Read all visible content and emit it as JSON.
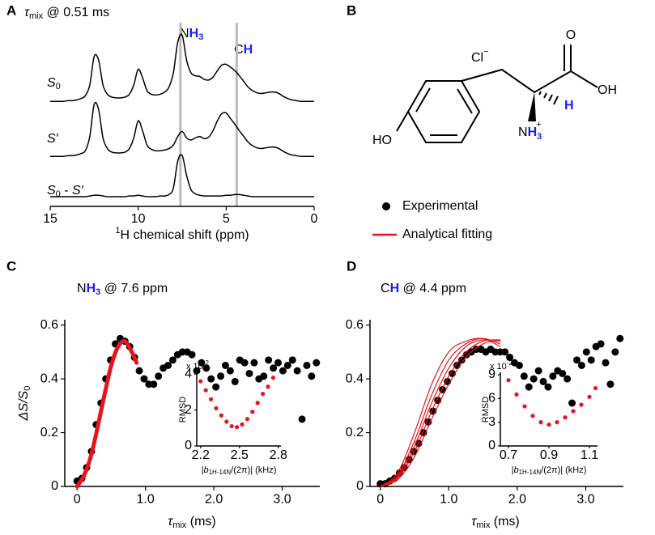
{
  "panel_labels": [
    "A",
    "B",
    "C",
    "D"
  ],
  "chart_data": [
    {
      "type": "spectrum",
      "title": [
        "τ",
        "mix",
        " @ 0.51 ms"
      ],
      "xlabel": [
        "1",
        "H chemical shift (ppm)"
      ],
      "xlim": [
        15,
        0
      ],
      "xticks": [
        15,
        10,
        5,
        0
      ],
      "x": [
        15,
        14.75,
        14.5,
        14.25,
        14,
        13.75,
        13.5,
        13.25,
        13,
        12.75,
        12.5,
        12.25,
        12,
        11.75,
        11.5,
        11.25,
        11,
        10.75,
        10.5,
        10.25,
        10,
        9.75,
        9.5,
        9.25,
        9,
        8.75,
        8.5,
        8.25,
        8,
        7.75,
        7.5,
        7.25,
        7,
        6.75,
        6.5,
        6.25,
        6,
        5.75,
        5.5,
        5.25,
        5,
        4.75,
        4.5,
        4.25,
        4,
        3.75,
        3.5,
        3.25,
        3,
        2.75,
        2.5,
        2.25,
        2,
        1.75,
        1.5,
        1.25,
        1,
        0.75,
        0.5,
        0.25,
        0
      ],
      "series": [
        {
          "name": [
            "S",
            "0"
          ],
          "color": "#000000",
          "values": [
            0.02,
            0.02,
            0.02,
            0.02,
            0.03,
            0.03,
            0.04,
            0.06,
            0.1,
            0.25,
            0.65,
            0.6,
            0.25,
            0.12,
            0.08,
            0.07,
            0.07,
            0.08,
            0.12,
            0.25,
            0.47,
            0.35,
            0.17,
            0.12,
            0.11,
            0.12,
            0.15,
            0.22,
            0.42,
            0.85,
            0.95,
            0.6,
            0.42,
            0.38,
            0.37,
            0.33,
            0.32,
            0.36,
            0.45,
            0.53,
            0.54,
            0.5,
            0.45,
            0.38,
            0.3,
            0.22,
            0.17,
            0.14,
            0.13,
            0.14,
            0.15,
            0.15,
            0.13,
            0.09,
            0.06,
            0.04,
            0.03,
            0.02,
            0.02,
            0.02,
            0.02
          ]
        },
        {
          "name": [
            "S",
            "′"
          ],
          "color": "#000000",
          "values": [
            0.02,
            0.02,
            0.02,
            0.02,
            0.03,
            0.03,
            0.04,
            0.06,
            0.1,
            0.3,
            0.75,
            0.68,
            0.28,
            0.13,
            0.08,
            0.07,
            0.07,
            0.08,
            0.13,
            0.28,
            0.52,
            0.38,
            0.18,
            0.12,
            0.1,
            0.1,
            0.11,
            0.13,
            0.18,
            0.3,
            0.37,
            0.28,
            0.25,
            0.28,
            0.3,
            0.27,
            0.29,
            0.38,
            0.52,
            0.62,
            0.63,
            0.55,
            0.47,
            0.38,
            0.3,
            0.22,
            0.17,
            0.14,
            0.13,
            0.14,
            0.15,
            0.15,
            0.13,
            0.09,
            0.06,
            0.04,
            0.03,
            0.02,
            0.02,
            0.02,
            0.02
          ]
        },
        {
          "name": [
            "S",
            "0",
            " - ",
            "S",
            "′"
          ],
          "color": "#000000",
          "values": [
            0,
            0,
            0,
            0,
            0,
            0,
            0,
            0,
            0,
            0.01,
            0.02,
            0.02,
            0.01,
            0,
            0,
            0,
            0,
            0,
            0.01,
            0.01,
            0.02,
            0.01,
            0,
            0,
            0,
            0.01,
            0.01,
            0.03,
            0.12,
            0.5,
            0.58,
            0.3,
            0.1,
            0.04,
            0.02,
            0.01,
            0.01,
            0.01,
            0.01,
            0.01,
            0.02,
            0.02,
            0.03,
            0.03,
            0.02,
            0.01,
            0,
            0,
            0,
            0,
            0,
            0,
            0,
            0,
            0,
            0,
            0,
            0,
            0,
            0,
            0
          ]
        }
      ],
      "guide_lines": [
        7.6,
        4.4
      ],
      "guide_color": "#bbbbbb",
      "peak_labels": [
        [
          "N",
          "H",
          "3"
        ],
        [
          "C",
          "H"
        ]
      ]
    },
    {
      "type": "scatter",
      "title": [
        "N",
        "H",
        "3",
        " @ 7.6 ppm"
      ],
      "xlabel": [
        "τ",
        "mix",
        " (ms)"
      ],
      "ylabel": [
        "ΔS/S",
        "0"
      ],
      "xlim": [
        -0.18,
        3.55
      ],
      "ylim": [
        0,
        0.62
      ],
      "xticks": [
        0,
        {
          "value": 1,
          "label": "1.0"
        },
        {
          "value": 2,
          "label": "2.0"
        },
        {
          "value": 3,
          "label": "3.0"
        }
      ],
      "yticks": [
        0,
        0.2,
        0.4,
        0.6
      ],
      "color": "#000000",
      "x": [
        0,
        0.07,
        0.14,
        0.21,
        0.28,
        0.35,
        0.42,
        0.49,
        0.56,
        0.63,
        0.7,
        0.77,
        0.84,
        0.91,
        0.98,
        1.05,
        1.12,
        1.19,
        1.26,
        1.33,
        1.4,
        1.47,
        1.54,
        1.61,
        1.68,
        1.75,
        1.82,
        1.89,
        1.96,
        2.03,
        2.1,
        2.17,
        2.24,
        2.31,
        2.38,
        2.45,
        2.52,
        2.59,
        2.66,
        2.73,
        2.8,
        2.87,
        2.94,
        3.01,
        3.08,
        3.15,
        3.22,
        3.29,
        3.36,
        3.43,
        3.5
      ],
      "values": [
        0.02,
        0.03,
        0.07,
        0.13,
        0.23,
        0.31,
        0.4,
        0.47,
        0.53,
        0.55,
        0.54,
        0.52,
        0.48,
        0.43,
        0.4,
        0.38,
        0.38,
        0.41,
        0.44,
        0.45,
        0.47,
        0.49,
        0.5,
        0.5,
        0.49,
        0.43,
        0.46,
        0.44,
        0.4,
        0.37,
        0.41,
        0.45,
        0.43,
        0.39,
        0.47,
        0.46,
        0.42,
        0.46,
        0.4,
        0.41,
        0.47,
        0.44,
        0.46,
        0.43,
        0.45,
        0.47,
        0.43,
        0.25,
        0.45,
        0.41,
        0.46
      ],
      "fit": {
        "color": "#e8141c",
        "x": [
          0,
          0.1,
          0.2,
          0.3,
          0.4,
          0.5,
          0.6,
          0.7,
          0.8,
          0.87
        ],
        "series": [
          {
            "values": [
              0,
              0.04,
              0.11,
              0.22,
              0.34,
              0.45,
              0.52,
              0.54,
              0.5,
              0.46
            ]
          }
        ]
      },
      "inset": {
        "ylabel": "RMSD",
        "scale": [
          "x 10",
          "-2"
        ],
        "xlabel": [
          "|",
          "b",
          "1H-14N",
          "/(2π)| (kHz)"
        ],
        "xlim": [
          2.17,
          2.82
        ],
        "ylim": [
          0,
          4.1
        ],
        "xticks": [
          2.2,
          2.5,
          2.8
        ],
        "yticks": [
          0,
          2,
          4
        ],
        "color": "#e8141c",
        "x": [
          2.2,
          2.24,
          2.28,
          2.32,
          2.36,
          2.4,
          2.44,
          2.48,
          2.52,
          2.56,
          2.6,
          2.64,
          2.68,
          2.72,
          2.76
        ],
        "values": [
          3.6,
          3.1,
          2.6,
          2.1,
          1.7,
          1.35,
          1.1,
          1.05,
          1.2,
          1.5,
          1.9,
          2.4,
          2.9,
          3.3,
          3.8
        ]
      }
    },
    {
      "type": "scatter",
      "title": [
        "C",
        "H",
        " @ 4.4 ppm"
      ],
      "xlabel": [
        "τ",
        "mix",
        " (ms)"
      ],
      "xlim": [
        -0.15,
        3.55
      ],
      "ylim": [
        0,
        0.62
      ],
      "xticks": [
        0,
        {
          "value": 1,
          "label": "1.0"
        },
        {
          "value": 2,
          "label": "2.0"
        },
        {
          "value": 3,
          "label": "3.0"
        }
      ],
      "yticks": [
        0,
        0.2,
        0.4,
        0.6
      ],
      "color": "#000000",
      "x": [
        0,
        0.07,
        0.14,
        0.21,
        0.28,
        0.35,
        0.42,
        0.49,
        0.56,
        0.63,
        0.7,
        0.77,
        0.84,
        0.91,
        0.98,
        1.05,
        1.12,
        1.19,
        1.26,
        1.33,
        1.4,
        1.47,
        1.54,
        1.61,
        1.68,
        1.75,
        1.82,
        1.89,
        1.96,
        2.03,
        2.1,
        2.17,
        2.24,
        2.31,
        2.38,
        2.45,
        2.52,
        2.59,
        2.66,
        2.73,
        2.8,
        2.87,
        2.94,
        3.01,
        3.08,
        3.15,
        3.22,
        3.29,
        3.36,
        3.43,
        3.5
      ],
      "values": [
        0.01,
        0.01,
        0.02,
        0.03,
        0.05,
        0.07,
        0.1,
        0.13,
        0.16,
        0.2,
        0.24,
        0.28,
        0.32,
        0.36,
        0.39,
        0.42,
        0.45,
        0.47,
        0.49,
        0.5,
        0.51,
        0.51,
        0.5,
        0.51,
        0.5,
        0.5,
        0.5,
        0.48,
        0.46,
        0.45,
        0.41,
        0.37,
        0.4,
        0.43,
        0.39,
        0.37,
        0.41,
        0.43,
        0.42,
        0.4,
        0.31,
        0.47,
        0.45,
        0.5,
        0.47,
        0.52,
        0.53,
        0.46,
        0.38,
        0.5,
        0.55
      ],
      "fit": {
        "color": "#e8141c",
        "x": [
          0,
          0.25,
          0.5,
          0.75,
          1,
          1.25,
          1.5,
          1.75
        ],
        "series": [
          {
            "values": [
              0,
              0.05,
              0.2,
              0.38,
              0.5,
              0.54,
              0.55,
              0.52
            ]
          },
          {
            "values": [
              0,
              0.04,
              0.17,
              0.34,
              0.47,
              0.53,
              0.55,
              0.53
            ]
          },
          {
            "values": [
              0,
              0.035,
              0.15,
              0.31,
              0.44,
              0.52,
              0.545,
              0.54
            ]
          },
          {
            "values": [
              0,
              0.03,
              0.13,
              0.28,
              0.41,
              0.5,
              0.54,
              0.545
            ]
          },
          {
            "values": [
              0,
              0.025,
              0.11,
              0.25,
              0.38,
              0.48,
              0.53,
              0.545
            ]
          }
        ]
      },
      "inset": {
        "ylabel": "RMSD",
        "scale": [
          "x 10",
          "-2"
        ],
        "xlabel": [
          "|",
          "b",
          "1H-14N",
          "/(2π)| (kHz)"
        ],
        "xlim": [
          0.66,
          1.14
        ],
        "ylim": [
          0,
          9.3
        ],
        "xticks": [
          0.7,
          0.9,
          1.1
        ],
        "yticks": [
          0,
          3,
          6,
          9
        ],
        "color": "#e8141c",
        "x": [
          0.7,
          0.74,
          0.78,
          0.82,
          0.86,
          0.9,
          0.94,
          0.98,
          1.02,
          1.06,
          1.1,
          1.13
        ],
        "values": [
          8.3,
          6.5,
          5,
          3.8,
          3,
          2.7,
          3,
          3.6,
          4.4,
          5.2,
          6.2,
          7.3
        ]
      }
    }
  ],
  "legend": [
    {
      "name": "Experimental",
      "marker": "dot",
      "color": "#000000"
    },
    {
      "name": "Analytical fitting",
      "marker": "line",
      "color": "#e8141c"
    }
  ],
  "structure": {
    "counterion": [
      "Cl",
      "−"
    ],
    "carbonyl": "O",
    "hydroxyl": "OH",
    "alpha_h": "H",
    "amine": [
      "N",
      "H",
      "3",
      "+"
    ],
    "phenol": "HO"
  }
}
